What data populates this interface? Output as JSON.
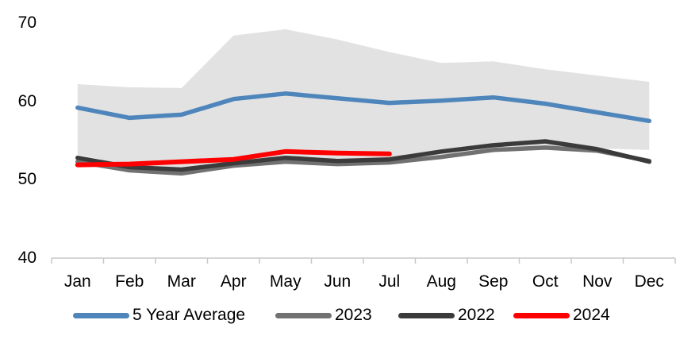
{
  "chart_data": {
    "type": "line",
    "categories": [
      "Jan",
      "Feb",
      "Mar",
      "Apr",
      "May",
      "Jun",
      "Jul",
      "Aug",
      "Sep",
      "Oct",
      "Nov",
      "Dec"
    ],
    "series": [
      {
        "name": "5 Year Average",
        "color": "#4E86BC",
        "values": [
          59.2,
          57.9,
          58.3,
          60.3,
          61.0,
          60.4,
          59.8,
          60.1,
          60.5,
          59.7,
          58.6,
          57.5
        ]
      },
      {
        "name": "2023",
        "color": "#717171",
        "values": [
          52.3,
          51.2,
          50.8,
          51.8,
          52.3,
          52.0,
          52.2,
          52.9,
          53.8,
          54.1,
          53.7,
          52.4
        ]
      },
      {
        "name": "2022",
        "color": "#3B3B3B",
        "values": [
          52.8,
          51.6,
          51.3,
          52.1,
          52.8,
          52.4,
          52.6,
          53.6,
          54.4,
          54.9,
          53.9,
          52.3
        ]
      },
      {
        "name": "2024",
        "color": "#FE0000",
        "values": [
          51.9,
          52.0,
          52.3,
          52.6,
          53.6,
          53.4,
          53.3,
          null,
          null,
          null,
          null,
          null
        ]
      }
    ],
    "band": {
      "name": "5-year min-max range",
      "color": "#E2E2E2",
      "upper": [
        62.2,
        61.8,
        61.7,
        68.4,
        69.2,
        67.9,
        66.3,
        64.9,
        65.1,
        64.1,
        63.3,
        62.5
      ],
      "lower": [
        53.2,
        51.8,
        51.5,
        51.9,
        52.2,
        51.9,
        52.1,
        52.8,
        53.8,
        54.2,
        54.0,
        53.8
      ]
    },
    "title": "",
    "xlabel": "",
    "ylabel": "",
    "ylim": [
      40,
      70
    ],
    "yticks": [
      70,
      60,
      50,
      40
    ],
    "grid": false,
    "legend_position": "bottom",
    "axis_color": "#C8C8C8",
    "text_color": "#000000"
  }
}
